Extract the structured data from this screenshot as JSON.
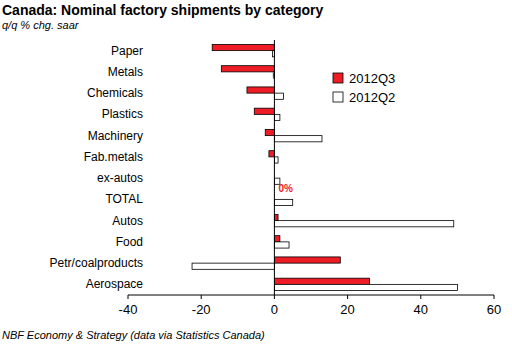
{
  "chart_data": {
    "type": "bar",
    "orientation": "horizontal",
    "title": "Canada: Nominal factory shipments by category",
    "subtitle": "q/q % chg. saar",
    "source": "NBF Economy & Strategy (data via Statistics Canada)",
    "categories": [
      "Paper",
      "Metals",
      "Chemicals",
      "Plastics",
      "Machinery",
      "Fab.metals",
      "ex-autos",
      "TOTAL",
      "Autos",
      "Food",
      "Petr/coalproducts",
      "Aerospace"
    ],
    "series": [
      {
        "name": "2012Q3",
        "color": "#ee1c25",
        "values": [
          -17,
          -14.5,
          -7.5,
          -5.5,
          -2.5,
          -1.5,
          0,
          0,
          1,
          1.5,
          18,
          26
        ],
        "value_labels": [
          null,
          null,
          null,
          null,
          null,
          null,
          null,
          "0%",
          null,
          null,
          null,
          null
        ]
      },
      {
        "name": "2012Q2",
        "color": "#ffffff",
        "values": [
          -0.5,
          -0.3,
          2.5,
          1.5,
          13,
          1,
          1.5,
          5,
          49,
          4,
          -22.5,
          50
        ]
      }
    ],
    "data_labels": true,
    "xlim": [
      -40,
      60
    ],
    "xticks": [
      -40,
      -20,
      0,
      20,
      40,
      60
    ],
    "grid": false,
    "legend": "upper right"
  }
}
